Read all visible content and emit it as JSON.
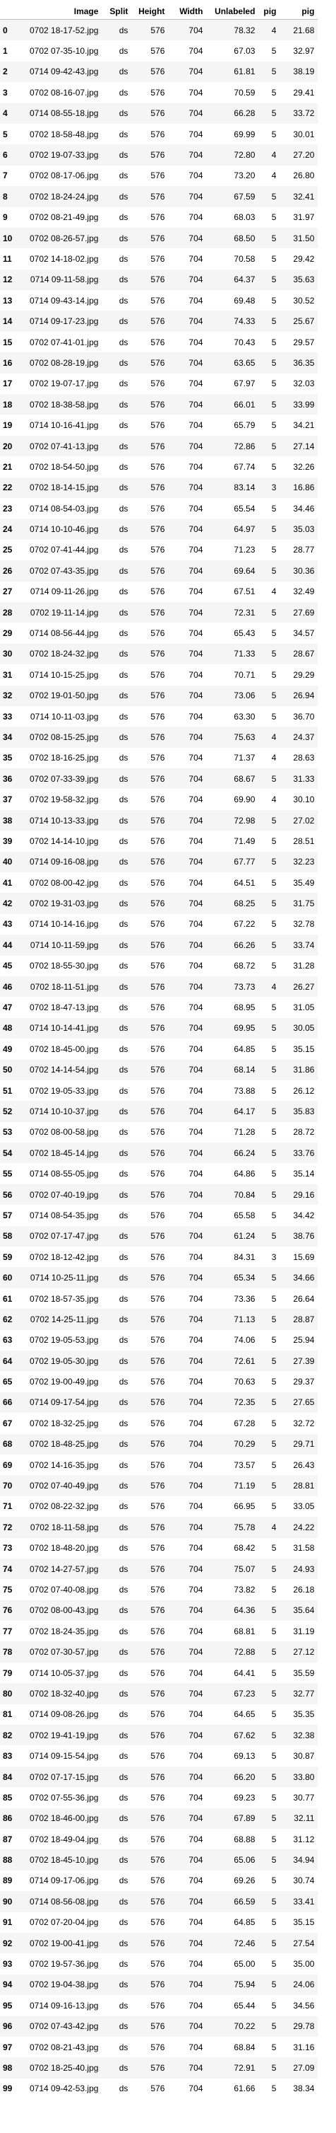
{
  "columns": [
    "",
    "Image",
    "Split",
    "Height",
    "Width",
    "Unlabeled",
    "pig",
    "pig"
  ],
  "rows": [
    [
      "0",
      "0702 18-17-52.jpg",
      "ds",
      "576",
      "704",
      "78.32",
      "4",
      "21.68"
    ],
    [
      "1",
      "0702 07-35-10.jpg",
      "ds",
      "576",
      "704",
      "67.03",
      "5",
      "32.97"
    ],
    [
      "2",
      "0714 09-42-43.jpg",
      "ds",
      "576",
      "704",
      "61.81",
      "5",
      "38.19"
    ],
    [
      "3",
      "0702 08-16-07.jpg",
      "ds",
      "576",
      "704",
      "70.59",
      "5",
      "29.41"
    ],
    [
      "4",
      "0714 08-55-18.jpg",
      "ds",
      "576",
      "704",
      "66.28",
      "5",
      "33.72"
    ],
    [
      "5",
      "0702 18-58-48.jpg",
      "ds",
      "576",
      "704",
      "69.99",
      "5",
      "30.01"
    ],
    [
      "6",
      "0702 19-07-33.jpg",
      "ds",
      "576",
      "704",
      "72.80",
      "4",
      "27.20"
    ],
    [
      "7",
      "0702 08-17-06.jpg",
      "ds",
      "576",
      "704",
      "73.20",
      "4",
      "26.80"
    ],
    [
      "8",
      "0702 18-24-24.jpg",
      "ds",
      "576",
      "704",
      "67.59",
      "5",
      "32.41"
    ],
    [
      "9",
      "0702 08-21-49.jpg",
      "ds",
      "576",
      "704",
      "68.03",
      "5",
      "31.97"
    ],
    [
      "10",
      "0702 08-26-57.jpg",
      "ds",
      "576",
      "704",
      "68.50",
      "5",
      "31.50"
    ],
    [
      "11",
      "0702 14-18-02.jpg",
      "ds",
      "576",
      "704",
      "70.58",
      "5",
      "29.42"
    ],
    [
      "12",
      "0714 09-11-58.jpg",
      "ds",
      "576",
      "704",
      "64.37",
      "5",
      "35.63"
    ],
    [
      "13",
      "0714 09-43-14.jpg",
      "ds",
      "576",
      "704",
      "69.48",
      "5",
      "30.52"
    ],
    [
      "14",
      "0714 09-17-23.jpg",
      "ds",
      "576",
      "704",
      "74.33",
      "5",
      "25.67"
    ],
    [
      "15",
      "0702 07-41-01.jpg",
      "ds",
      "576",
      "704",
      "70.43",
      "5",
      "29.57"
    ],
    [
      "16",
      "0702 08-28-19.jpg",
      "ds",
      "576",
      "704",
      "63.65",
      "5",
      "36.35"
    ],
    [
      "17",
      "0702 19-07-17.jpg",
      "ds",
      "576",
      "704",
      "67.97",
      "5",
      "32.03"
    ],
    [
      "18",
      "0702 18-38-58.jpg",
      "ds",
      "576",
      "704",
      "66.01",
      "5",
      "33.99"
    ],
    [
      "19",
      "0714 10-16-41.jpg",
      "ds",
      "576",
      "704",
      "65.79",
      "5",
      "34.21"
    ],
    [
      "20",
      "0702 07-41-13.jpg",
      "ds",
      "576",
      "704",
      "72.86",
      "5",
      "27.14"
    ],
    [
      "21",
      "0702 18-54-50.jpg",
      "ds",
      "576",
      "704",
      "67.74",
      "5",
      "32.26"
    ],
    [
      "22",
      "0702 18-14-15.jpg",
      "ds",
      "576",
      "704",
      "83.14",
      "3",
      "16.86"
    ],
    [
      "23",
      "0714 08-54-03.jpg",
      "ds",
      "576",
      "704",
      "65.54",
      "5",
      "34.46"
    ],
    [
      "24",
      "0714 10-10-46.jpg",
      "ds",
      "576",
      "704",
      "64.97",
      "5",
      "35.03"
    ],
    [
      "25",
      "0702 07-41-44.jpg",
      "ds",
      "576",
      "704",
      "71.23",
      "5",
      "28.77"
    ],
    [
      "26",
      "0702 07-43-35.jpg",
      "ds",
      "576",
      "704",
      "69.64",
      "5",
      "30.36"
    ],
    [
      "27",
      "0714 09-11-26.jpg",
      "ds",
      "576",
      "704",
      "67.51",
      "4",
      "32.49"
    ],
    [
      "28",
      "0702 19-11-14.jpg",
      "ds",
      "576",
      "704",
      "72.31",
      "5",
      "27.69"
    ],
    [
      "29",
      "0714 08-56-44.jpg",
      "ds",
      "576",
      "704",
      "65.43",
      "5",
      "34.57"
    ],
    [
      "30",
      "0702 18-24-32.jpg",
      "ds",
      "576",
      "704",
      "71.33",
      "5",
      "28.67"
    ],
    [
      "31",
      "0714 10-15-25.jpg",
      "ds",
      "576",
      "704",
      "70.71",
      "5",
      "29.29"
    ],
    [
      "32",
      "0702 19-01-50.jpg",
      "ds",
      "576",
      "704",
      "73.06",
      "5",
      "26.94"
    ],
    [
      "33",
      "0714 10-11-03.jpg",
      "ds",
      "576",
      "704",
      "63.30",
      "5",
      "36.70"
    ],
    [
      "34",
      "0702 08-15-25.jpg",
      "ds",
      "576",
      "704",
      "75.63",
      "4",
      "24.37"
    ],
    [
      "35",
      "0702 18-16-25.jpg",
      "ds",
      "576",
      "704",
      "71.37",
      "4",
      "28.63"
    ],
    [
      "36",
      "0702 07-33-39.jpg",
      "ds",
      "576",
      "704",
      "68.67",
      "5",
      "31.33"
    ],
    [
      "37",
      "0702 19-58-32.jpg",
      "ds",
      "576",
      "704",
      "69.90",
      "4",
      "30.10"
    ],
    [
      "38",
      "0714 10-13-33.jpg",
      "ds",
      "576",
      "704",
      "72.98",
      "5",
      "27.02"
    ],
    [
      "39",
      "0702 14-14-10.jpg",
      "ds",
      "576",
      "704",
      "71.49",
      "5",
      "28.51"
    ],
    [
      "40",
      "0714 09-16-08.jpg",
      "ds",
      "576",
      "704",
      "67.77",
      "5",
      "32.23"
    ],
    [
      "41",
      "0702 08-00-42.jpg",
      "ds",
      "576",
      "704",
      "64.51",
      "5",
      "35.49"
    ],
    [
      "42",
      "0702 19-31-03.jpg",
      "ds",
      "576",
      "704",
      "68.25",
      "5",
      "31.75"
    ],
    [
      "43",
      "0714 10-14-16.jpg",
      "ds",
      "576",
      "704",
      "67.22",
      "5",
      "32.78"
    ],
    [
      "44",
      "0714 10-11-59.jpg",
      "ds",
      "576",
      "704",
      "66.26",
      "5",
      "33.74"
    ],
    [
      "45",
      "0702 18-55-30.jpg",
      "ds",
      "576",
      "704",
      "68.72",
      "5",
      "31.28"
    ],
    [
      "46",
      "0702 18-11-51.jpg",
      "ds",
      "576",
      "704",
      "73.73",
      "4",
      "26.27"
    ],
    [
      "47",
      "0702 18-47-13.jpg",
      "ds",
      "576",
      "704",
      "68.95",
      "5",
      "31.05"
    ],
    [
      "48",
      "0714 10-14-41.jpg",
      "ds",
      "576",
      "704",
      "69.95",
      "5",
      "30.05"
    ],
    [
      "49",
      "0702 18-45-00.jpg",
      "ds",
      "576",
      "704",
      "64.85",
      "5",
      "35.15"
    ],
    [
      "50",
      "0702 14-14-54.jpg",
      "ds",
      "576",
      "704",
      "68.14",
      "5",
      "31.86"
    ],
    [
      "51",
      "0702 19-05-33.jpg",
      "ds",
      "576",
      "704",
      "73.88",
      "5",
      "26.12"
    ],
    [
      "52",
      "0714 10-10-37.jpg",
      "ds",
      "576",
      "704",
      "64.17",
      "5",
      "35.83"
    ],
    [
      "53",
      "0702 08-00-58.jpg",
      "ds",
      "576",
      "704",
      "71.28",
      "5",
      "28.72"
    ],
    [
      "54",
      "0702 18-45-14.jpg",
      "ds",
      "576",
      "704",
      "66.24",
      "5",
      "33.76"
    ],
    [
      "55",
      "0714 08-55-05.jpg",
      "ds",
      "576",
      "704",
      "64.86",
      "5",
      "35.14"
    ],
    [
      "56",
      "0702 07-40-19.jpg",
      "ds",
      "576",
      "704",
      "70.84",
      "5",
      "29.16"
    ],
    [
      "57",
      "0714 08-54-35.jpg",
      "ds",
      "576",
      "704",
      "65.58",
      "5",
      "34.42"
    ],
    [
      "58",
      "0702 07-17-47.jpg",
      "ds",
      "576",
      "704",
      "61.24",
      "5",
      "38.76"
    ],
    [
      "59",
      "0702 18-12-42.jpg",
      "ds",
      "576",
      "704",
      "84.31",
      "3",
      "15.69"
    ],
    [
      "60",
      "0714 10-25-11.jpg",
      "ds",
      "576",
      "704",
      "65.34",
      "5",
      "34.66"
    ],
    [
      "61",
      "0702 18-57-35.jpg",
      "ds",
      "576",
      "704",
      "73.36",
      "5",
      "26.64"
    ],
    [
      "62",
      "0702 14-25-11.jpg",
      "ds",
      "576",
      "704",
      "71.13",
      "5",
      "28.87"
    ],
    [
      "63",
      "0702 19-05-53.jpg",
      "ds",
      "576",
      "704",
      "74.06",
      "5",
      "25.94"
    ],
    [
      "64",
      "0702 19-05-30.jpg",
      "ds",
      "576",
      "704",
      "72.61",
      "5",
      "27.39"
    ],
    [
      "65",
      "0702 19-00-49.jpg",
      "ds",
      "576",
      "704",
      "70.63",
      "5",
      "29.37"
    ],
    [
      "66",
      "0714 09-17-54.jpg",
      "ds",
      "576",
      "704",
      "72.35",
      "5",
      "27.65"
    ],
    [
      "67",
      "0702 18-32-25.jpg",
      "ds",
      "576",
      "704",
      "67.28",
      "5",
      "32.72"
    ],
    [
      "68",
      "0702 18-48-25.jpg",
      "ds",
      "576",
      "704",
      "70.29",
      "5",
      "29.71"
    ],
    [
      "69",
      "0702 14-16-35.jpg",
      "ds",
      "576",
      "704",
      "73.57",
      "5",
      "26.43"
    ],
    [
      "70",
      "0702 07-40-49.jpg",
      "ds",
      "576",
      "704",
      "71.19",
      "5",
      "28.81"
    ],
    [
      "71",
      "0702 08-22-32.jpg",
      "ds",
      "576",
      "704",
      "66.95",
      "5",
      "33.05"
    ],
    [
      "72",
      "0702 18-11-58.jpg",
      "ds",
      "576",
      "704",
      "75.78",
      "4",
      "24.22"
    ],
    [
      "73",
      "0702 18-48-20.jpg",
      "ds",
      "576",
      "704",
      "68.42",
      "5",
      "31.58"
    ],
    [
      "74",
      "0702 14-27-57.jpg",
      "ds",
      "576",
      "704",
      "75.07",
      "5",
      "24.93"
    ],
    [
      "75",
      "0702 07-40-08.jpg",
      "ds",
      "576",
      "704",
      "73.82",
      "5",
      "26.18"
    ],
    [
      "76",
      "0702 08-00-43.jpg",
      "ds",
      "576",
      "704",
      "64.36",
      "5",
      "35.64"
    ],
    [
      "77",
      "0702 18-24-35.jpg",
      "ds",
      "576",
      "704",
      "68.81",
      "5",
      "31.19"
    ],
    [
      "78",
      "0702 07-30-57.jpg",
      "ds",
      "576",
      "704",
      "72.88",
      "5",
      "27.12"
    ],
    [
      "79",
      "0714 10-05-37.jpg",
      "ds",
      "576",
      "704",
      "64.41",
      "5",
      "35.59"
    ],
    [
      "80",
      "0702 18-32-40.jpg",
      "ds",
      "576",
      "704",
      "67.23",
      "5",
      "32.77"
    ],
    [
      "81",
      "0714 09-08-26.jpg",
      "ds",
      "576",
      "704",
      "64.65",
      "5",
      "35.35"
    ],
    [
      "82",
      "0702 19-41-19.jpg",
      "ds",
      "576",
      "704",
      "67.62",
      "5",
      "32.38"
    ],
    [
      "83",
      "0714 09-15-54.jpg",
      "ds",
      "576",
      "704",
      "69.13",
      "5",
      "30.87"
    ],
    [
      "84",
      "0702 07-17-15.jpg",
      "ds",
      "576",
      "704",
      "66.20",
      "5",
      "33.80"
    ],
    [
      "85",
      "0702 07-55-36.jpg",
      "ds",
      "576",
      "704",
      "69.23",
      "5",
      "30.77"
    ],
    [
      "86",
      "0702 18-46-00.jpg",
      "ds",
      "576",
      "704",
      "67.89",
      "5",
      "32.11"
    ],
    [
      "87",
      "0702 18-49-04.jpg",
      "ds",
      "576",
      "704",
      "68.88",
      "5",
      "31.12"
    ],
    [
      "88",
      "0702 18-45-10.jpg",
      "ds",
      "576",
      "704",
      "65.06",
      "5",
      "34.94"
    ],
    [
      "89",
      "0714 09-17-06.jpg",
      "ds",
      "576",
      "704",
      "69.26",
      "5",
      "30.74"
    ],
    [
      "90",
      "0714 08-56-08.jpg",
      "ds",
      "576",
      "704",
      "66.59",
      "5",
      "33.41"
    ],
    [
      "91",
      "0702 07-20-04.jpg",
      "ds",
      "576",
      "704",
      "64.85",
      "5",
      "35.15"
    ],
    [
      "92",
      "0702 19-00-41.jpg",
      "ds",
      "576",
      "704",
      "72.46",
      "5",
      "27.54"
    ],
    [
      "93",
      "0702 19-57-36.jpg",
      "ds",
      "576",
      "704",
      "65.00",
      "5",
      "35.00"
    ],
    [
      "94",
      "0702 19-04-38.jpg",
      "ds",
      "576",
      "704",
      "75.94",
      "5",
      "24.06"
    ],
    [
      "95",
      "0714 09-16-13.jpg",
      "ds",
      "576",
      "704",
      "65.44",
      "5",
      "34.56"
    ],
    [
      "96",
      "0702 07-43-42.jpg",
      "ds",
      "576",
      "704",
      "70.22",
      "5",
      "29.78"
    ],
    [
      "97",
      "0702 08-21-43.jpg",
      "ds",
      "576",
      "704",
      "68.84",
      "5",
      "31.16"
    ],
    [
      "98",
      "0702 18-25-40.jpg",
      "ds",
      "576",
      "704",
      "72.91",
      "5",
      "27.09"
    ],
    [
      "99",
      "0714 09-42-53.jpg",
      "ds",
      "576",
      "704",
      "61.66",
      "5",
      "38.34"
    ]
  ]
}
